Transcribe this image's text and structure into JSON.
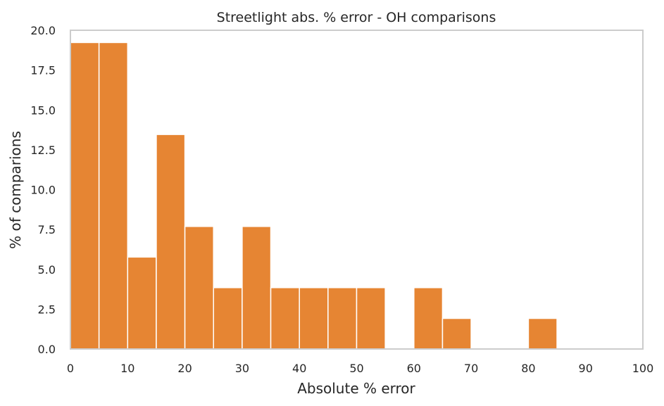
{
  "chart_data": {
    "type": "bar",
    "title": "Streetlight abs. % error - OH comparisons",
    "xlabel": "Absolute % error",
    "ylabel": "% of comparions",
    "xlim": [
      0,
      100
    ],
    "ylim": [
      0,
      20
    ],
    "bin_width": 5,
    "bin_starts": [
      0,
      5,
      10,
      15,
      20,
      25,
      30,
      35,
      40,
      45,
      50,
      55,
      60,
      65,
      70,
      75,
      80,
      85,
      90,
      95
    ],
    "values": [
      19.23,
      19.23,
      5.77,
      13.46,
      7.69,
      3.85,
      7.69,
      3.85,
      3.85,
      3.85,
      3.85,
      0,
      3.85,
      1.92,
      0,
      0,
      1.92,
      0,
      0,
      0
    ],
    "x_ticks": [
      "0",
      "10",
      "20",
      "30",
      "40",
      "50",
      "60",
      "70",
      "80",
      "90",
      "100"
    ],
    "x_tick_values": [
      0,
      10,
      20,
      30,
      40,
      50,
      60,
      70,
      80,
      90,
      100
    ],
    "y_ticks": [
      "0.0",
      "2.5",
      "5.0",
      "7.5",
      "10.0",
      "12.5",
      "15.0",
      "17.5",
      "20.0"
    ],
    "y_tick_values": [
      0,
      2.5,
      5,
      7.5,
      10,
      12.5,
      15,
      17.5,
      20
    ],
    "grid": false,
    "colors": {
      "bar": "#e68533",
      "bar_edge": "#ffffff",
      "spine": "#cccccc",
      "text": "#262626"
    }
  }
}
